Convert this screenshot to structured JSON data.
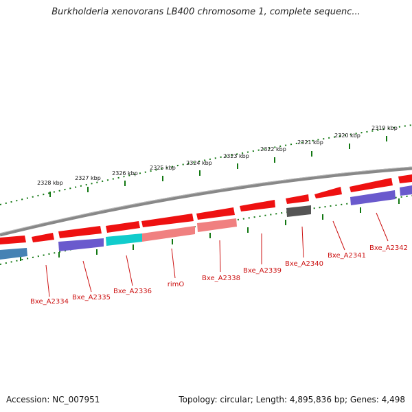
{
  "title": "Burkholderia xenovorans LB400 chromosome 1, complete sequenc...",
  "footer": {
    "accession": "Accession: NC_007951",
    "summary": "Topology: circular; Length: 4,895,836 bp; Genes: 4,498"
  },
  "colors": {
    "forward_gene": "#ee1111",
    "reverse_gene": "#f08080",
    "purple_gene": "#6a5acd",
    "cyan_gene": "#11cccc",
    "blue_gene": "#4682b4",
    "gray_gene": "#555555",
    "backbone": "#888888",
    "ticks": "#117711",
    "label": "#cc1111"
  },
  "ticks": [
    {
      "label": "2328 kbp"
    },
    {
      "label": "2327 kbp"
    },
    {
      "label": "2326 kbp"
    },
    {
      "label": "2325 kbp"
    },
    {
      "label": "2324 kbp"
    },
    {
      "label": "2323 kbp"
    },
    {
      "label": "2322 kbp"
    },
    {
      "label": "2321 kbp"
    },
    {
      "label": "2320 kbp"
    },
    {
      "label": "2319 kbp"
    }
  ],
  "genes": [
    {
      "label": "Bxe_A2334"
    },
    {
      "label": "Bxe_A2335"
    },
    {
      "label": "Bxe_A2336"
    },
    {
      "label": "rimO"
    },
    {
      "label": "Bxe_A2338"
    },
    {
      "label": "Bxe_A2339"
    },
    {
      "label": "Bxe_A2340"
    },
    {
      "label": "Bxe_A2341"
    },
    {
      "label": "Bxe_A2342"
    }
  ]
}
